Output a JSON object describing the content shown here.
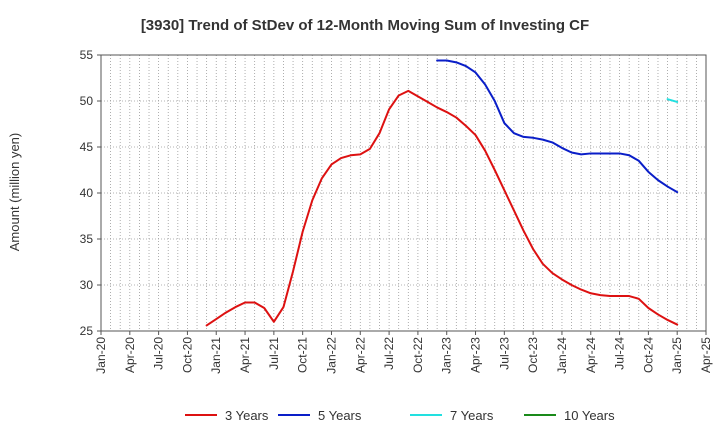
{
  "chart_data": {
    "type": "line",
    "title": "[3930]  Trend of StDev of 12-Month Moving Sum of Investing CF",
    "xlabel": "",
    "ylabel": "Amount (million yen)",
    "ylim": [
      25,
      55
    ],
    "yticks": [
      25,
      30,
      35,
      40,
      45,
      50,
      55
    ],
    "x_range": [
      "2020-01",
      "2025-04"
    ],
    "xticks": [
      "Jan-20",
      "Apr-20",
      "Jul-20",
      "Oct-20",
      "Jan-21",
      "Apr-21",
      "Jul-21",
      "Oct-21",
      "Jan-22",
      "Apr-22",
      "Jul-22",
      "Oct-22",
      "Jan-23",
      "Apr-23",
      "Jul-23",
      "Oct-23",
      "Jan-24",
      "Apr-24",
      "Jul-24",
      "Oct-24",
      "Jan-25",
      "Apr-25"
    ],
    "grid": true,
    "legend_position": "bottom",
    "series": [
      {
        "name": "3 Years",
        "color": "#dd1111",
        "x": [
          "2020-12",
          "2021-01",
          "2021-02",
          "2021-03",
          "2021-04",
          "2021-05",
          "2021-06",
          "2021-07",
          "2021-08",
          "2021-09",
          "2021-10",
          "2021-11",
          "2021-12",
          "2022-01",
          "2022-02",
          "2022-03",
          "2022-04",
          "2022-05",
          "2022-06",
          "2022-07",
          "2022-08",
          "2022-09",
          "2022-10",
          "2022-11",
          "2022-12",
          "2023-01",
          "2023-02",
          "2023-03",
          "2023-04",
          "2023-05",
          "2023-06",
          "2023-07",
          "2023-08",
          "2023-09",
          "2023-10",
          "2023-11",
          "2023-12",
          "2024-01",
          "2024-02",
          "2024-03",
          "2024-04",
          "2024-05",
          "2024-06",
          "2024-07",
          "2024-08",
          "2024-09",
          "2024-10",
          "2024-11",
          "2024-12",
          "2025-01"
        ],
        "values": [
          25.6,
          26.3,
          27.0,
          27.6,
          28.1,
          28.1,
          27.5,
          26.0,
          27.6,
          31.5,
          35.8,
          39.2,
          41.6,
          43.1,
          43.8,
          44.1,
          44.2,
          44.8,
          46.5,
          49.1,
          50.6,
          51.1,
          50.5,
          49.9,
          49.3,
          48.8,
          48.2,
          47.3,
          46.3,
          44.6,
          42.5,
          40.3,
          38.1,
          35.9,
          33.9,
          32.3,
          31.3,
          30.6,
          30.0,
          29.5,
          29.1,
          28.9,
          28.8,
          28.8,
          28.8,
          28.5,
          27.5,
          26.8,
          26.2,
          25.7
        ]
      },
      {
        "name": "5 Years",
        "color": "#0a1ec8",
        "x": [
          "2022-12",
          "2023-01",
          "2023-02",
          "2023-03",
          "2023-04",
          "2023-05",
          "2023-06",
          "2023-07",
          "2023-08",
          "2023-09",
          "2023-10",
          "2023-11",
          "2023-12",
          "2024-01",
          "2024-02",
          "2024-03",
          "2024-04",
          "2024-05",
          "2024-06",
          "2024-07",
          "2024-08",
          "2024-09",
          "2024-10",
          "2024-11",
          "2024-12",
          "2025-01"
        ],
        "values": [
          54.4,
          54.4,
          54.2,
          53.8,
          53.1,
          51.8,
          50.0,
          47.6,
          46.5,
          46.1,
          46.0,
          45.8,
          45.5,
          44.9,
          44.4,
          44.2,
          44.3,
          44.3,
          44.3,
          44.3,
          44.1,
          43.5,
          42.3,
          41.4,
          40.7,
          40.1
        ]
      },
      {
        "name": "7 Years",
        "color": "#22e0e0",
        "x": [
          "2024-12",
          "2025-01"
        ],
        "values": [
          50.2,
          49.9
        ]
      },
      {
        "name": "10 Years",
        "color": "#1a8a1a",
        "x": [],
        "values": []
      }
    ]
  }
}
